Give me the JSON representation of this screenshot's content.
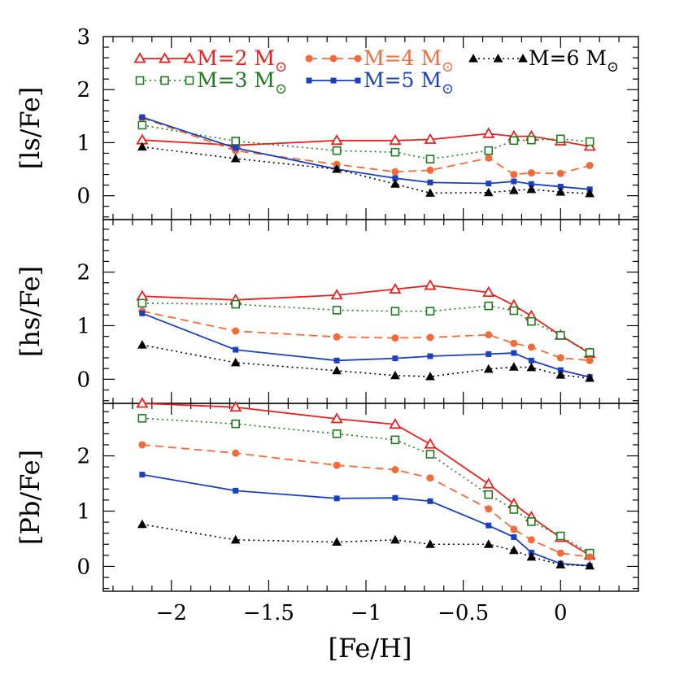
{
  "chart_data": {
    "type": "line",
    "x_values": [
      -2.15,
      -1.67,
      -1.15,
      -0.85,
      -0.67,
      -0.37,
      -0.24,
      -0.15,
      0.0,
      0.15
    ],
    "xlabel": "[Fe/H]",
    "xlim": [
      -2.35,
      0.4
    ],
    "x_ticks": [
      -2,
      -1.5,
      -1,
      -0.5,
      0
    ],
    "x_tick_labels": [
      "−2",
      "−1.5",
      "−1",
      "−0.5",
      "0"
    ],
    "legend": {
      "placement": "top of upper panel",
      "entries": [
        {
          "name": "M=2 M",
          "sub": "⊙"
        },
        {
          "name": "M=3 M",
          "sub": "⊙"
        },
        {
          "name": "M=4 M",
          "sub": "⊙"
        },
        {
          "name": "M=5 M",
          "sub": "⊙"
        },
        {
          "name": "M=6 M",
          "sub": "⊙"
        }
      ]
    },
    "series_styles": [
      {
        "name": "M=2 M⊙",
        "color": "#e8201e",
        "line": "solid",
        "marker": "open-triangle"
      },
      {
        "name": "M=3 M⊙",
        "color": "#1f7a1f",
        "line": "dotted",
        "marker": "open-square"
      },
      {
        "name": "M=4 M⊙",
        "color": "#f26b3a",
        "line": "dashed",
        "marker": "filled-circle"
      },
      {
        "name": "M=5 M⊙",
        "color": "#1a3fbf",
        "line": "solid",
        "marker": "filled-square"
      },
      {
        "name": "M=6 M⊙",
        "color": "#000000",
        "line": "dotted",
        "marker": "filled-triangle"
      }
    ],
    "panels": [
      {
        "ylabel": "[ls/Fe]",
        "ylim": [
          -0.45,
          3.0
        ],
        "y_ticks": [
          0,
          1,
          2,
          3
        ],
        "y_tick_labels": [
          "0",
          "1",
          "2",
          "3"
        ],
        "series": [
          {
            "name": "M=2 M⊙",
            "values": [
              1.05,
              0.95,
              1.04,
              1.04,
              1.06,
              1.17,
              1.12,
              1.12,
              1.03,
              0.93
            ]
          },
          {
            "name": "M=3 M⊙",
            "values": [
              1.33,
              1.03,
              0.85,
              0.82,
              0.69,
              0.85,
              1.04,
              1.05,
              1.07,
              1.02
            ]
          },
          {
            "name": "M=4 M⊙",
            "values": [
              1.47,
              0.85,
              0.59,
              0.45,
              0.48,
              0.71,
              0.4,
              0.43,
              0.42,
              0.57
            ]
          },
          {
            "name": "M=5 M⊙",
            "values": [
              1.48,
              0.9,
              0.5,
              0.33,
              0.25,
              0.23,
              0.27,
              0.22,
              0.17,
              0.12
            ]
          },
          {
            "name": "M=6 M⊙",
            "values": [
              0.92,
              0.7,
              0.5,
              0.22,
              0.05,
              0.06,
              0.1,
              0.12,
              0.07,
              0.04
            ]
          }
        ]
      },
      {
        "ylabel": "[hs/Fe]",
        "ylim": [
          -0.45,
          2.98
        ],
        "y_ticks": [
          0,
          1,
          2
        ],
        "y_tick_labels": [
          "0",
          "1",
          "2"
        ],
        "series": [
          {
            "name": "M=2 M⊙",
            "values": [
              1.55,
              1.48,
              1.57,
              1.68,
              1.75,
              1.62,
              1.38,
              1.18,
              0.82,
              0.48
            ]
          },
          {
            "name": "M=3 M⊙",
            "values": [
              1.42,
              1.4,
              1.29,
              1.27,
              1.27,
              1.37,
              1.28,
              1.08,
              0.82,
              0.5
            ]
          },
          {
            "name": "M=4 M⊙",
            "values": [
              1.27,
              0.9,
              0.79,
              0.77,
              0.78,
              0.83,
              0.67,
              0.6,
              0.4,
              0.35
            ]
          },
          {
            "name": "M=5 M⊙",
            "values": [
              1.23,
              0.55,
              0.35,
              0.39,
              0.43,
              0.47,
              0.49,
              0.35,
              0.17,
              0.04
            ]
          },
          {
            "name": "M=6 M⊙",
            "values": [
              0.64,
              0.31,
              0.16,
              0.07,
              0.05,
              0.19,
              0.23,
              0.22,
              0.08,
              0.02
            ]
          }
        ]
      },
      {
        "ylabel": "[Pb/Fe]",
        "ylim": [
          -0.45,
          2.95
        ],
        "y_ticks": [
          0,
          1,
          2
        ],
        "y_tick_labels": [
          "0",
          "1",
          "2"
        ],
        "series": [
          {
            "name": "M=2 M⊙",
            "values": [
              2.95,
              2.88,
              2.67,
              2.57,
              2.21,
              1.49,
              1.13,
              0.89,
              0.52,
              0.2
            ]
          },
          {
            "name": "M=3 M⊙",
            "values": [
              2.68,
              2.58,
              2.4,
              2.29,
              2.03,
              1.3,
              1.03,
              0.81,
              0.55,
              0.24
            ]
          },
          {
            "name": "M=4 M⊙",
            "values": [
              2.2,
              2.05,
              1.83,
              1.75,
              1.6,
              1.04,
              0.67,
              0.48,
              0.24,
              0.17
            ]
          },
          {
            "name": "M=5 M⊙",
            "values": [
              1.66,
              1.37,
              1.23,
              1.24,
              1.18,
              0.74,
              0.53,
              0.25,
              0.05,
              0.01
            ]
          },
          {
            "name": "M=6 M⊙",
            "values": [
              0.76,
              0.48,
              0.44,
              0.48,
              0.4,
              0.4,
              0.29,
              0.17,
              0.03,
              0.01
            ]
          }
        ]
      }
    ]
  }
}
